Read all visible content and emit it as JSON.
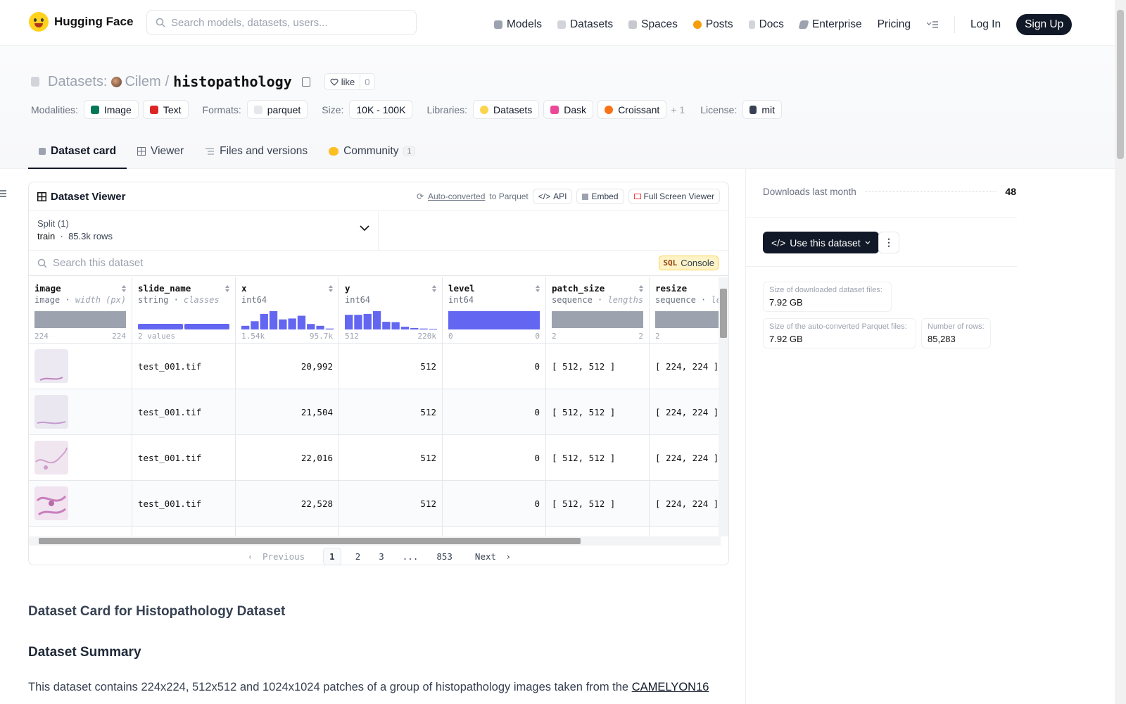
{
  "nav": {
    "brand": "Hugging Face",
    "search_placeholder": "Search models, datasets, users...",
    "links": [
      "Models",
      "Datasets",
      "Spaces",
      "Posts",
      "Docs",
      "Enterprise",
      "Pricing"
    ],
    "login": "Log In",
    "signup": "Sign Up"
  },
  "header": {
    "section": "Datasets:",
    "owner": "Cilem",
    "separator": "/",
    "repo": "histopathology",
    "like_label": "like",
    "like_count": "0",
    "modalities_label": "Modalities:",
    "modalities": [
      "Image",
      "Text"
    ],
    "formats_label": "Formats:",
    "formats": [
      "parquet"
    ],
    "size_label": "Size:",
    "size": "10K - 100K",
    "libraries_label": "Libraries:",
    "libraries": [
      "Datasets",
      "Dask",
      "Croissant"
    ],
    "libraries_more": "+ 1",
    "license_label": "License:",
    "license": "mit"
  },
  "tabs": {
    "card": "Dataset card",
    "viewer": "Viewer",
    "files": "Files and versions",
    "community": "Community",
    "community_count": "1"
  },
  "viewer": {
    "title": "Dataset Viewer",
    "auto_converted": "Auto-converted",
    "to_parquet": "to Parquet",
    "api": "API",
    "embed": "Embed",
    "fullscreen": "Full Screen Viewer",
    "split_label": "Split (1)",
    "split_name": "train",
    "split_rows": "85.3k rows",
    "search_placeholder": "Search this dataset",
    "sql": "SQL",
    "console": "Console",
    "columns": [
      {
        "name": "image",
        "type": "image",
        "hint": "width (px)",
        "min": "224",
        "max": "224"
      },
      {
        "name": "slide_name",
        "type": "string",
        "hint": "classes",
        "min": "2 values",
        "max": ""
      },
      {
        "name": "x",
        "type": "int64",
        "hint": "",
        "min": "1.54k",
        "max": "95.7k"
      },
      {
        "name": "y",
        "type": "int64",
        "hint": "",
        "min": "512",
        "max": "220k"
      },
      {
        "name": "level",
        "type": "int64",
        "hint": "",
        "min": "0",
        "max": "0"
      },
      {
        "name": "patch_size",
        "type": "sequence",
        "hint": "lengths",
        "min": "2",
        "max": "2"
      },
      {
        "name": "resize",
        "type": "sequence",
        "hint": "lengths",
        "min": "2",
        "max": ""
      }
    ],
    "rows": [
      {
        "slide_name": "test_001.tif",
        "x": "20,992",
        "y": "512",
        "level": "0",
        "patch_size": "[ 512, 512 ]",
        "resize": "[ 224, 224 ]"
      },
      {
        "slide_name": "test_001.tif",
        "x": "21,504",
        "y": "512",
        "level": "0",
        "patch_size": "[ 512, 512 ]",
        "resize": "[ 224, 224 ]"
      },
      {
        "slide_name": "test_001.tif",
        "x": "22,016",
        "y": "512",
        "level": "0",
        "patch_size": "[ 512, 512 ]",
        "resize": "[ 224, 224 ]"
      },
      {
        "slide_name": "test_001.tif",
        "x": "22,528",
        "y": "512",
        "level": "0",
        "patch_size": "[ 512, 512 ]",
        "resize": "[ 224, 224 ]"
      }
    ],
    "histograms": {
      "x": [
        0.2,
        0.45,
        0.85,
        1.0,
        0.55,
        0.6,
        0.75,
        0.3,
        0.2,
        0.05
      ],
      "y": [
        0.8,
        0.8,
        0.85,
        1.0,
        0.42,
        0.4,
        0.15,
        0.08,
        0.05,
        0.03
      ]
    },
    "pager": {
      "prev": "Previous",
      "pages": [
        "1",
        "2",
        "3",
        "...",
        "853"
      ],
      "next": "Next"
    }
  },
  "card": {
    "h1": "Dataset Card for Histopathology Dataset",
    "h2": "Dataset Summary",
    "summary": "This dataset contains 224x224, 512x512 and 1024x1024 patches of a group of histopathology images taken from the",
    "summary_link": "CAMELYON16"
  },
  "sidebar": {
    "downloads_label": "Downloads last month",
    "downloads": "48",
    "use_button": "Use this dataset",
    "dl_size_label": "Size of downloaded dataset files:",
    "dl_size": "7.92 GB",
    "parquet_size_label": "Size of the auto-converted Parquet files:",
    "parquet_size": "7.92 GB",
    "rows_label": "Number of rows:",
    "rows": "85,283"
  },
  "colors": {
    "accent": "#6366f1",
    "bar_gray": "#9ca3af",
    "dark": "#111827"
  }
}
